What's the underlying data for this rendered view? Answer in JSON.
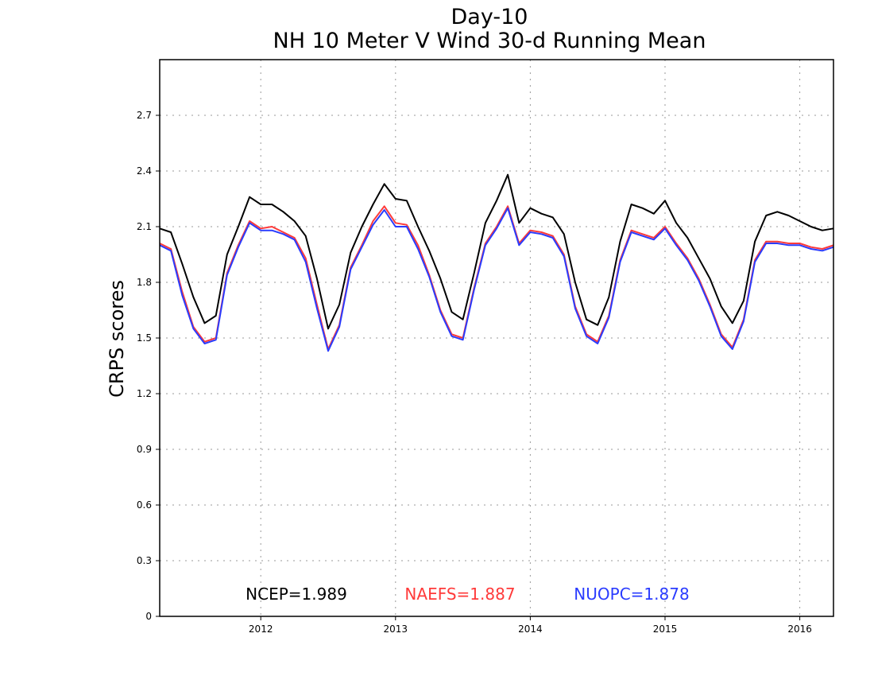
{
  "chart_data": {
    "type": "line",
    "title": "Day-10",
    "subtitle": "NH 10 Meter V Wind 30-d Running Mean",
    "xlabel": "",
    "ylabel": "CRPS scores",
    "xlim": [
      "2011-04",
      "2016-04"
    ],
    "ylim": [
      0,
      3.0
    ],
    "yticks": [
      0,
      0.3,
      0.6,
      0.9,
      1.2,
      1.5,
      1.8,
      2.1,
      2.4,
      2.7
    ],
    "ytick_labels": [
      "0",
      "0.3",
      "0.6",
      "0.9",
      "1.2",
      "1.5",
      "1.8",
      "2.1",
      "2.4",
      "2.7"
    ],
    "xticks": [
      "2012-01",
      "2013-01",
      "2014-01",
      "2015-01",
      "2016-01"
    ],
    "xtick_labels": [
      "2012",
      "2013",
      "2014",
      "2015",
      "2016"
    ],
    "grid": true,
    "legend_position": "bottom",
    "series": [
      {
        "name": "NCEP",
        "color": "#000000",
        "legend_label": "NCEP=1.989",
        "x": [
          "2011-04",
          "2011-05",
          "2011-06",
          "2011-07",
          "2011-08",
          "2011-09",
          "2011-10",
          "2011-11",
          "2011-12",
          "2012-01",
          "2012-02",
          "2012-03",
          "2012-04",
          "2012-05",
          "2012-06",
          "2012-07",
          "2012-08",
          "2012-09",
          "2012-10",
          "2012-11",
          "2012-12",
          "2013-01",
          "2013-02",
          "2013-03",
          "2013-04",
          "2013-05",
          "2013-06",
          "2013-07",
          "2013-08",
          "2013-09",
          "2013-10",
          "2013-11",
          "2013-12",
          "2014-01",
          "2014-02",
          "2014-03",
          "2014-04",
          "2014-05",
          "2014-06",
          "2014-07",
          "2014-08",
          "2014-09",
          "2014-10",
          "2014-11",
          "2014-12",
          "2015-01",
          "2015-02",
          "2015-03",
          "2015-04",
          "2015-05",
          "2015-06",
          "2015-07",
          "2015-08",
          "2015-09",
          "2015-10",
          "2015-11",
          "2015-12",
          "2016-01",
          "2016-02",
          "2016-03",
          "2016-04"
        ],
        "values": [
          2.09,
          2.07,
          1.9,
          1.72,
          1.58,
          1.62,
          1.95,
          2.1,
          2.26,
          2.22,
          2.22,
          2.18,
          2.13,
          2.05,
          1.82,
          1.55,
          1.68,
          1.96,
          2.1,
          2.22,
          2.33,
          2.25,
          2.24,
          2.1,
          1.97,
          1.82,
          1.64,
          1.6,
          1.85,
          2.12,
          2.24,
          2.38,
          2.12,
          2.2,
          2.17,
          2.15,
          2.06,
          1.8,
          1.6,
          1.57,
          1.72,
          2.02,
          2.22,
          2.2,
          2.17,
          2.24,
          2.12,
          2.04,
          1.93,
          1.82,
          1.67,
          1.58,
          1.7,
          2.02,
          2.16,
          2.18,
          2.16,
          2.13,
          2.1,
          2.08,
          2.09
        ]
      },
      {
        "name": "NAEFS",
        "color": "#ff3a3a",
        "legend_label": "NAEFS=1.887",
        "x": [
          "2011-04",
          "2011-05",
          "2011-06",
          "2011-07",
          "2011-08",
          "2011-09",
          "2011-10",
          "2011-11",
          "2011-12",
          "2012-01",
          "2012-02",
          "2012-03",
          "2012-04",
          "2012-05",
          "2012-06",
          "2012-07",
          "2012-08",
          "2012-09",
          "2012-10",
          "2012-11",
          "2012-12",
          "2013-01",
          "2013-02",
          "2013-03",
          "2013-04",
          "2013-05",
          "2013-06",
          "2013-07",
          "2013-08",
          "2013-09",
          "2013-10",
          "2013-11",
          "2013-12",
          "2014-01",
          "2014-02",
          "2014-03",
          "2014-04",
          "2014-05",
          "2014-06",
          "2014-07",
          "2014-08",
          "2014-09",
          "2014-10",
          "2014-11",
          "2014-12",
          "2015-01",
          "2015-02",
          "2015-03",
          "2015-04",
          "2015-05",
          "2015-06",
          "2015-07",
          "2015-08",
          "2015-09",
          "2015-10",
          "2015-11",
          "2015-12",
          "2016-01",
          "2016-02",
          "2016-03",
          "2016-04"
        ],
        "values": [
          2.01,
          1.98,
          1.75,
          1.56,
          1.48,
          1.5,
          1.85,
          2.0,
          2.13,
          2.09,
          2.1,
          2.07,
          2.04,
          1.93,
          1.68,
          1.44,
          1.57,
          1.88,
          2.0,
          2.13,
          2.21,
          2.12,
          2.11,
          2.0,
          1.84,
          1.65,
          1.52,
          1.5,
          1.77,
          2.01,
          2.1,
          2.21,
          2.01,
          2.08,
          2.07,
          2.05,
          1.95,
          1.67,
          1.52,
          1.48,
          1.62,
          1.92,
          2.08,
          2.06,
          2.04,
          2.1,
          2.01,
          1.93,
          1.82,
          1.68,
          1.52,
          1.45,
          1.6,
          1.92,
          2.02,
          2.02,
          2.01,
          2.01,
          1.99,
          1.98,
          2.0
        ]
      },
      {
        "name": "NUOPC",
        "color": "#2a3cff",
        "legend_label": "NUOPC=1.878",
        "x": [
          "2011-04",
          "2011-05",
          "2011-06",
          "2011-07",
          "2011-08",
          "2011-09",
          "2011-10",
          "2011-11",
          "2011-12",
          "2012-01",
          "2012-02",
          "2012-03",
          "2012-04",
          "2012-05",
          "2012-06",
          "2012-07",
          "2012-08",
          "2012-09",
          "2012-10",
          "2012-11",
          "2012-12",
          "2013-01",
          "2013-02",
          "2013-03",
          "2013-04",
          "2013-05",
          "2013-06",
          "2013-07",
          "2013-08",
          "2013-09",
          "2013-10",
          "2013-11",
          "2013-12",
          "2014-01",
          "2014-02",
          "2014-03",
          "2014-04",
          "2014-05",
          "2014-06",
          "2014-07",
          "2014-08",
          "2014-09",
          "2014-10",
          "2014-11",
          "2014-12",
          "2015-01",
          "2015-02",
          "2015-03",
          "2015-04",
          "2015-05",
          "2015-06",
          "2015-07",
          "2015-08",
          "2015-09",
          "2015-10",
          "2015-11",
          "2015-12",
          "2016-01",
          "2016-02",
          "2016-03",
          "2016-04"
        ],
        "values": [
          2.0,
          1.97,
          1.73,
          1.55,
          1.47,
          1.49,
          1.84,
          1.99,
          2.12,
          2.08,
          2.08,
          2.06,
          2.03,
          1.91,
          1.66,
          1.43,
          1.56,
          1.87,
          1.99,
          2.11,
          2.19,
          2.1,
          2.1,
          1.98,
          1.83,
          1.64,
          1.51,
          1.49,
          1.76,
          2.0,
          2.09,
          2.2,
          2.0,
          2.07,
          2.06,
          2.04,
          1.94,
          1.66,
          1.51,
          1.47,
          1.61,
          1.91,
          2.07,
          2.05,
          2.03,
          2.09,
          2.0,
          1.92,
          1.81,
          1.67,
          1.51,
          1.44,
          1.59,
          1.91,
          2.01,
          2.01,
          2.0,
          2.0,
          1.98,
          1.97,
          1.99
        ]
      }
    ]
  }
}
